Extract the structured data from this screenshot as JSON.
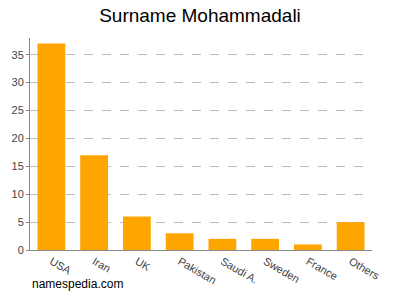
{
  "chart_data": {
    "type": "bar",
    "title": "Surname Mohammadali",
    "categories": [
      "USA",
      "Iran",
      "UK",
      "Pakistan",
      "Saudi A.",
      "Sweden",
      "France",
      "Others"
    ],
    "values": [
      37,
      17,
      6,
      3,
      2,
      2,
      1,
      5
    ],
    "color": "#ffa500",
    "ylim": [
      0,
      38
    ],
    "yticks": [
      0,
      5,
      10,
      15,
      20,
      25,
      30,
      35
    ],
    "grid": true,
    "annotations": [
      "namespedia.com"
    ]
  }
}
